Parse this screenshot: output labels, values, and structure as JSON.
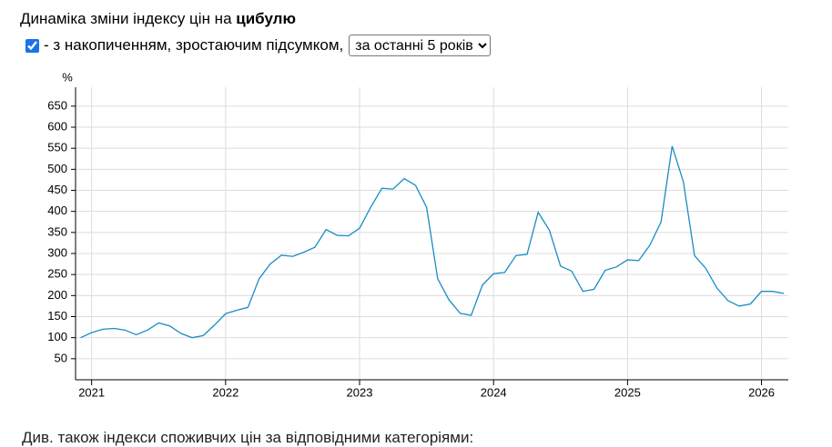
{
  "header": {
    "title": "Динаміка зміни індексу цін на",
    "title_product": "цибулю"
  },
  "controls": {
    "checkbox_checked": true,
    "checkbox_label": "- з накопиченням, зростаючим підсумком,",
    "period_select": "за останні 5 років"
  },
  "chart_data": {
    "type": "line",
    "y_label": "%",
    "color": "#1a8cc4",
    "grid": true,
    "x": [
      2020.917,
      2021,
      2021.083,
      2021.167,
      2021.25,
      2021.333,
      2021.417,
      2021.5,
      2021.583,
      2021.667,
      2021.75,
      2021.833,
      2021.917,
      2022,
      2022.083,
      2022.167,
      2022.25,
      2022.333,
      2022.417,
      2022.5,
      2022.583,
      2022.667,
      2022.75,
      2022.833,
      2022.917,
      2023,
      2023.083,
      2023.167,
      2023.25,
      2023.333,
      2023.417,
      2023.5,
      2023.583,
      2023.667,
      2023.75,
      2023.833,
      2023.917,
      2024,
      2024.083,
      2024.167,
      2024.25,
      2024.333,
      2024.417,
      2024.5,
      2024.583,
      2024.667,
      2024.75,
      2024.833,
      2024.917,
      2025,
      2025.083,
      2025.167,
      2025.25,
      2025.333,
      2025.417,
      2025.5,
      2025.583,
      2025.667,
      2025.75,
      2025.833,
      2025.917,
      2026,
      2026.083,
      2026.167
    ],
    "values": [
      100,
      112,
      120,
      122,
      118,
      107,
      118,
      135,
      128,
      110,
      100,
      105,
      130,
      157,
      165,
      172,
      240,
      275,
      296,
      293,
      303,
      315,
      357,
      343,
      342,
      360,
      410,
      455,
      453,
      478,
      462,
      410,
      240,
      190,
      158,
      153,
      225,
      252,
      255,
      295,
      298,
      398,
      355,
      270,
      258,
      210,
      215,
      260,
      268,
      285,
      283,
      320,
      375,
      555,
      470,
      295,
      265,
      218,
      188,
      175,
      180,
      210,
      210,
      205
    ],
    "xlim": [
      2020.88,
      2026.2
    ],
    "xticks": [
      2021,
      2022,
      2023,
      2024,
      2025,
      2026
    ],
    "ylim": [
      0,
      695
    ],
    "yticks": [
      50,
      100,
      150,
      200,
      250,
      300,
      350,
      400,
      450,
      500,
      550,
      600,
      650
    ]
  },
  "footer": {
    "text": "Див. також індекси споживчих цін за відповідними категоріями:"
  }
}
